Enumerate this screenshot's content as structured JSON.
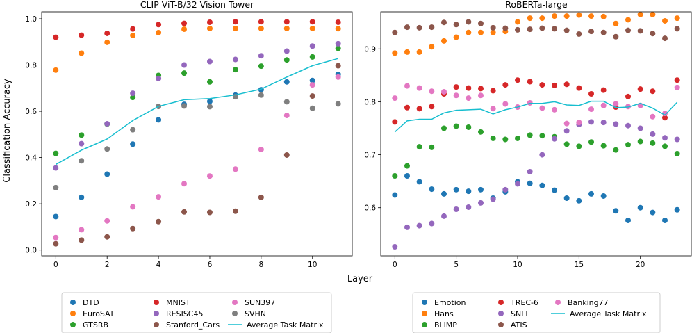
{
  "figure": {
    "shared_xlabel": "Layer",
    "shared_ylabel": "Classification Accuracy"
  },
  "chart_data": [
    {
      "type": "scatter",
      "title": "CLIP ViT-B/32 Vision Tower",
      "xlabel": "Layer",
      "ylabel": "Classification Accuracy",
      "xlim": [
        -0.55,
        11.55
      ],
      "ylim": [
        -0.025,
        1.03
      ],
      "xticks": [
        0,
        2,
        4,
        6,
        8,
        10
      ],
      "yticks": [
        0.0,
        0.2,
        0.4,
        0.6,
        0.8,
        1.0
      ],
      "ytick_labels": [
        "0.0",
        "0.2",
        "0.4",
        "0.6",
        "0.8",
        "1.0"
      ],
      "x": [
        0,
        1,
        2,
        3,
        4,
        5,
        6,
        7,
        8,
        9,
        10,
        11
      ],
      "series": [
        {
          "name": "DTD",
          "color": "#1f77b4",
          "values": [
            0.145,
            0.228,
            0.328,
            0.458,
            0.563,
            0.63,
            0.643,
            0.67,
            0.693,
            0.727,
            0.733,
            0.76
          ]
        },
        {
          "name": "EuroSAT",
          "color": "#ff7f0e",
          "values": [
            0.778,
            0.851,
            0.898,
            0.928,
            0.94,
            0.955,
            0.958,
            0.958,
            0.958,
            0.958,
            0.958,
            0.957
          ]
        },
        {
          "name": "GTSRB",
          "color": "#2ca02c",
          "values": [
            0.418,
            0.497,
            0.545,
            0.66,
            0.755,
            0.765,
            0.727,
            0.78,
            0.795,
            0.822,
            0.835,
            0.872
          ]
        },
        {
          "name": "MNIST",
          "color": "#d62728",
          "values": [
            0.92,
            0.929,
            0.937,
            0.956,
            0.975,
            0.98,
            0.985,
            0.987,
            0.987,
            0.987,
            0.987,
            0.985
          ]
        },
        {
          "name": "RESISC45",
          "color": "#9467bd",
          "values": [
            0.355,
            0.46,
            0.546,
            0.678,
            0.742,
            0.8,
            0.815,
            0.824,
            0.84,
            0.86,
            0.882,
            0.892
          ]
        },
        {
          "name": "Stanford_Cars",
          "color": "#8c564b",
          "values": [
            0.027,
            0.043,
            0.057,
            0.093,
            0.123,
            0.165,
            0.163,
            0.168,
            0.228,
            0.411,
            0.666,
            0.797
          ]
        },
        {
          "name": "SUN397",
          "color": "#e377c2",
          "values": [
            0.054,
            0.088,
            0.126,
            0.187,
            0.23,
            0.287,
            0.32,
            0.35,
            0.435,
            0.582,
            0.714,
            0.748
          ]
        },
        {
          "name": "SVHN",
          "color": "#7f7f7f",
          "values": [
            0.27,
            0.386,
            0.437,
            0.52,
            0.621,
            0.623,
            0.62,
            0.663,
            0.67,
            0.641,
            0.613,
            0.632
          ]
        }
      ],
      "line": {
        "name": "Average Task Matrix",
        "color": "#17becf",
        "values": [
          0.37,
          0.432,
          0.48,
          0.56,
          0.621,
          0.65,
          0.655,
          0.671,
          0.696,
          0.748,
          0.797,
          0.828
        ]
      }
    },
    {
      "type": "scatter",
      "title": "RoBERTa-large",
      "xlabel": "Layer",
      "xlim": [
        -1.15,
        24.15
      ],
      "ylim": [
        0.509,
        0.97
      ],
      "xticks": [
        0,
        5,
        10,
        15,
        20
      ],
      "yticks": [
        0.6,
        0.7,
        0.8,
        0.9
      ],
      "ytick_labels": [
        "0.6",
        "0.7",
        "0.8",
        "0.9"
      ],
      "x": [
        0,
        1,
        2,
        3,
        4,
        5,
        6,
        7,
        8,
        9,
        10,
        11,
        12,
        13,
        14,
        15,
        16,
        17,
        18,
        19,
        20,
        21,
        22,
        23
      ],
      "series": [
        {
          "name": "Emotion",
          "color": "#1f77b4",
          "values": [
            0.624,
            0.66,
            0.649,
            0.635,
            0.626,
            0.634,
            0.631,
            0.634,
            0.618,
            0.63,
            0.649,
            0.646,
            0.642,
            0.633,
            0.618,
            0.613,
            0.626,
            0.622,
            0.594,
            0.576,
            0.6,
            0.591,
            0.576,
            0.596
          ]
        },
        {
          "name": "Hans",
          "color": "#ff7f0e",
          "values": [
            0.892,
            0.894,
            0.894,
            0.904,
            0.915,
            0.922,
            0.931,
            0.931,
            0.931,
            0.933,
            0.951,
            0.958,
            0.958,
            0.962,
            0.962,
            0.964,
            0.962,
            0.961,
            0.948,
            0.955,
            0.965,
            0.965,
            0.953,
            0.958
          ]
        },
        {
          "name": "BLiMP",
          "color": "#2ca02c",
          "values": [
            0.66,
            0.679,
            0.715,
            0.714,
            0.75,
            0.754,
            0.752,
            0.743,
            0.731,
            0.729,
            0.731,
            0.737,
            0.736,
            0.734,
            0.72,
            0.716,
            0.724,
            0.717,
            0.709,
            0.719,
            0.725,
            0.722,
            0.716,
            0.702
          ]
        },
        {
          "name": "TREC-6",
          "color": "#d62728",
          "values": [
            0.762,
            0.789,
            0.787,
            0.791,
            0.815,
            0.828,
            0.826,
            0.825,
            0.821,
            0.832,
            0.841,
            0.838,
            0.832,
            0.831,
            0.833,
            0.826,
            0.815,
            0.822,
            0.79,
            0.81,
            0.824,
            0.82,
            0.77,
            0.841
          ]
        },
        {
          "name": "SNLI",
          "color": "#9467bd",
          "values": [
            0.526,
            0.563,
            0.566,
            0.57,
            0.584,
            0.597,
            0.601,
            0.609,
            0.616,
            0.634,
            0.645,
            0.668,
            0.7,
            0.73,
            0.745,
            0.757,
            0.762,
            0.761,
            0.758,
            0.755,
            0.75,
            0.739,
            0.732,
            0.729
          ]
        },
        {
          "name": "ATIS",
          "color": "#8c564b",
          "values": [
            0.931,
            0.941,
            0.94,
            0.941,
            0.95,
            0.946,
            0.951,
            0.948,
            0.94,
            0.939,
            0.936,
            0.937,
            0.939,
            0.938,
            0.935,
            0.928,
            0.933,
            0.931,
            0.923,
            0.935,
            0.934,
            0.929,
            0.92,
            0.938
          ]
        },
        {
          "name": "Banking77",
          "color": "#e377c2",
          "values": [
            0.807,
            0.83,
            0.826,
            0.82,
            0.819,
            0.812,
            0.807,
            0.812,
            0.787,
            0.796,
            0.79,
            0.798,
            0.788,
            0.785,
            0.759,
            0.761,
            0.786,
            0.793,
            0.796,
            0.791,
            0.793,
            0.772,
            0.778,
            0.827
          ]
        }
      ],
      "line": {
        "name": "Average Task Matrix",
        "color": "#17becf",
        "values": [
          0.743,
          0.764,
          0.767,
          0.767,
          0.779,
          0.784,
          0.785,
          0.786,
          0.777,
          0.785,
          0.79,
          0.797,
          0.797,
          0.8,
          0.794,
          0.793,
          0.801,
          0.801,
          0.789,
          0.79,
          0.797,
          0.788,
          0.775,
          0.799
        ]
      }
    }
  ]
}
